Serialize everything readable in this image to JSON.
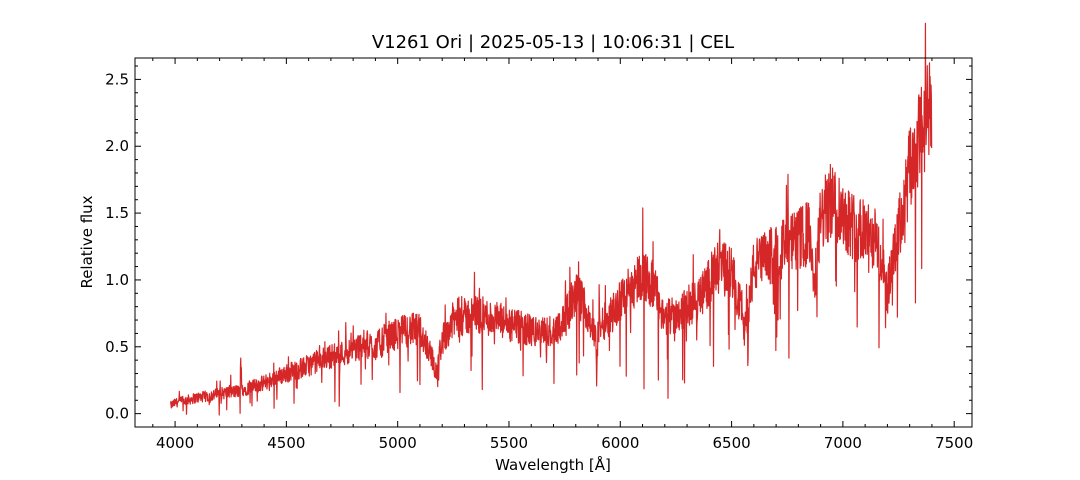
{
  "chart_data": {
    "type": "line",
    "title": "V1261 Ori | 2025-05-13 | 10:06:31 | CEL",
    "xlabel": "Wavelength [Å]",
    "ylabel": "Relative flux",
    "xlim": [
      3820,
      7580
    ],
    "ylim": [
      -0.1,
      2.66
    ],
    "xticks": [
      4000,
      4500,
      5000,
      5500,
      6000,
      6500,
      7000,
      7500
    ],
    "xtick_labels": [
      "4000",
      "4500",
      "5000",
      "5500",
      "6000",
      "6500",
      "7000",
      "7500"
    ],
    "yticks": [
      0.0,
      0.5,
      1.0,
      1.5,
      2.0,
      2.5
    ],
    "ytick_labels": [
      "0.0",
      "0.5",
      "1.0",
      "1.5",
      "2.0",
      "2.5"
    ],
    "grid": false,
    "series_color": "#d62728",
    "series": [
      {
        "x": [
          3980,
          4000,
          4050,
          4100,
          4150,
          4200,
          4250,
          4290,
          4295,
          4300,
          4350,
          4400,
          4450,
          4500,
          4550,
          4600,
          4650,
          4700,
          4750,
          4800,
          4850,
          4900,
          4950,
          5000,
          5050,
          5100,
          5150,
          5170,
          5200,
          5250,
          5300,
          5350,
          5400,
          5450,
          5500,
          5550,
          5600,
          5650,
          5700,
          5750,
          5800,
          5850,
          5890,
          5895,
          5900,
          5950,
          6000,
          6050,
          6100,
          6150,
          6200,
          6250,
          6300,
          6350,
          6400,
          6450,
          6500,
          6550,
          6560,
          6600,
          6650,
          6700,
          6750,
          6800,
          6850,
          6870,
          6900,
          6950,
          7000,
          7050,
          7100,
          7150,
          7200,
          7250,
          7300,
          7350,
          7400
        ],
        "y": [
          0.06,
          0.08,
          0.1,
          0.12,
          0.13,
          0.15,
          0.16,
          0.17,
          0.36,
          0.18,
          0.2,
          0.23,
          0.27,
          0.3,
          0.33,
          0.36,
          0.4,
          0.43,
          0.45,
          0.48,
          0.52,
          0.5,
          0.57,
          0.6,
          0.63,
          0.62,
          0.45,
          0.3,
          0.55,
          0.7,
          0.72,
          0.75,
          0.72,
          0.7,
          0.66,
          0.64,
          0.62,
          0.6,
          0.62,
          0.7,
          0.9,
          0.78,
          0.55,
          0.3,
          0.65,
          0.72,
          0.85,
          0.95,
          1.05,
          0.95,
          0.7,
          0.75,
          0.8,
          0.85,
          1.0,
          1.1,
          1.05,
          0.75,
          0.6,
          1.1,
          1.15,
          1.2,
          1.25,
          1.3,
          1.35,
          0.9,
          1.45,
          1.6,
          1.5,
          1.4,
          1.35,
          1.3,
          0.9,
          1.35,
          1.8,
          2.1,
          2.3
        ]
      }
    ]
  }
}
